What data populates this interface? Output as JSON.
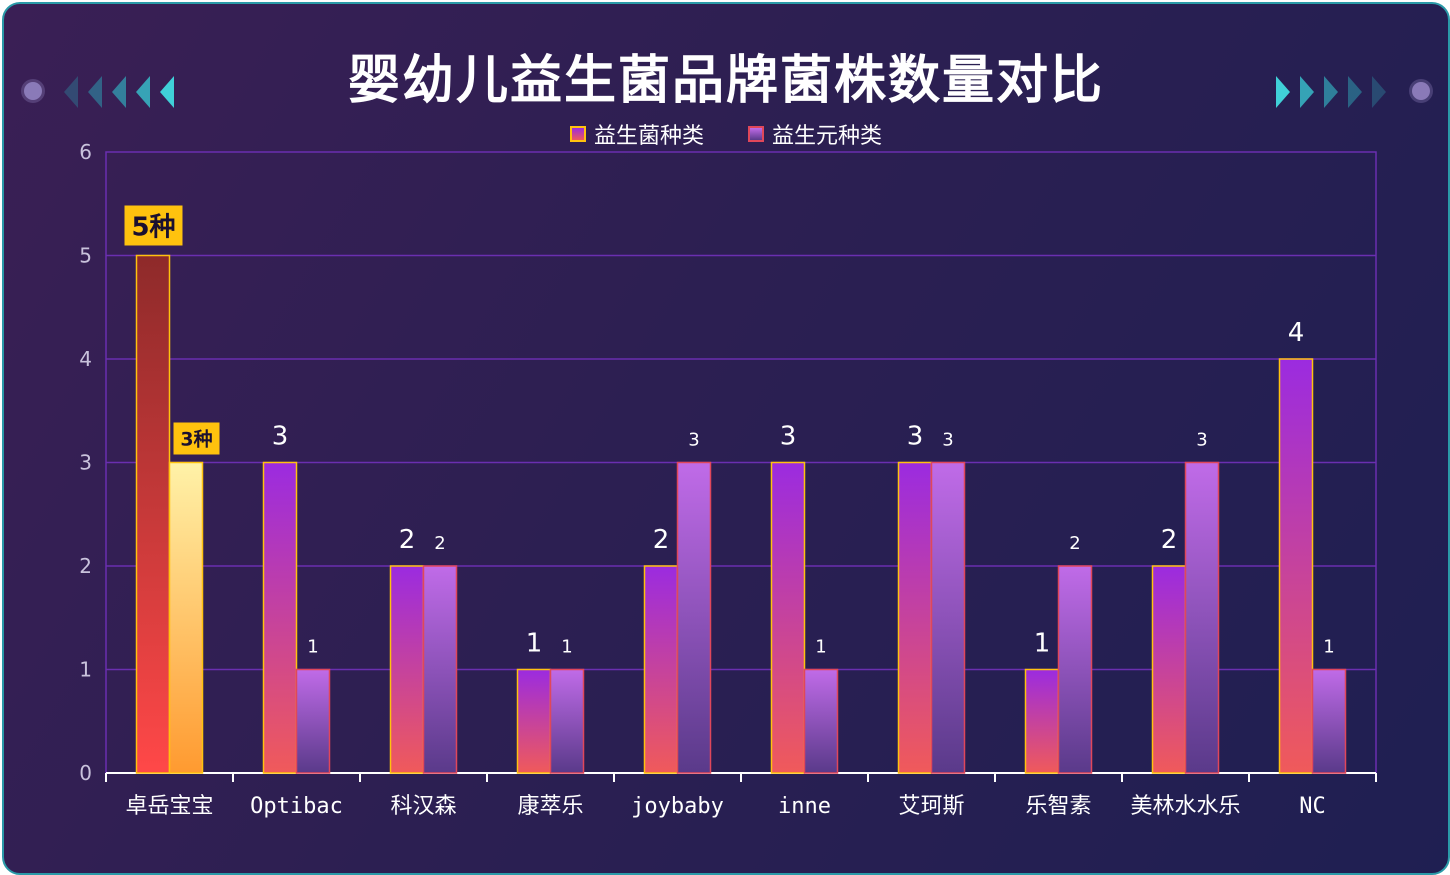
{
  "chart_data": {
    "type": "bar",
    "title": "婴幼儿益生菌品牌菌株数量对比",
    "categories": [
      "卓岳宝宝",
      "Optibac",
      "科汉森",
      "康萃乐",
      "joybaby",
      "inne",
      "艾珂斯",
      "乐智素",
      "美林水水乐",
      "NC"
    ],
    "series": [
      {
        "name": "益生菌种类",
        "values": [
          5,
          3,
          2,
          1,
          2,
          3,
          3,
          1,
          2,
          4
        ]
      },
      {
        "name": "益生元种类",
        "values": [
          3,
          1,
          2,
          1,
          3,
          1,
          3,
          2,
          3,
          1
        ]
      }
    ],
    "ylim": [
      0,
      6
    ],
    "yticks": [
      "0",
      "1",
      "2",
      "3",
      "4",
      "5",
      "6"
    ],
    "callouts": {
      "series1": "5种",
      "series2": "3种"
    },
    "grid": true,
    "legend_position": "top-center",
    "colors": {
      "series1_top": "#9b2be0",
      "series1_bottom": "#f05a5a",
      "series1_border": "#ffc20e",
      "series2_top": "#c06be8",
      "series2_bottom": "#5a3a8a",
      "series2_border": "#e0475a",
      "highlight1_top": "#8e2a2a",
      "highlight1_bottom": "#ff4848",
      "highlight2_top": "#fff2a8",
      "highlight2_bottom": "#ff9a30",
      "callout_bg": "#ffc20e",
      "grid": "#6a2fb0"
    }
  }
}
